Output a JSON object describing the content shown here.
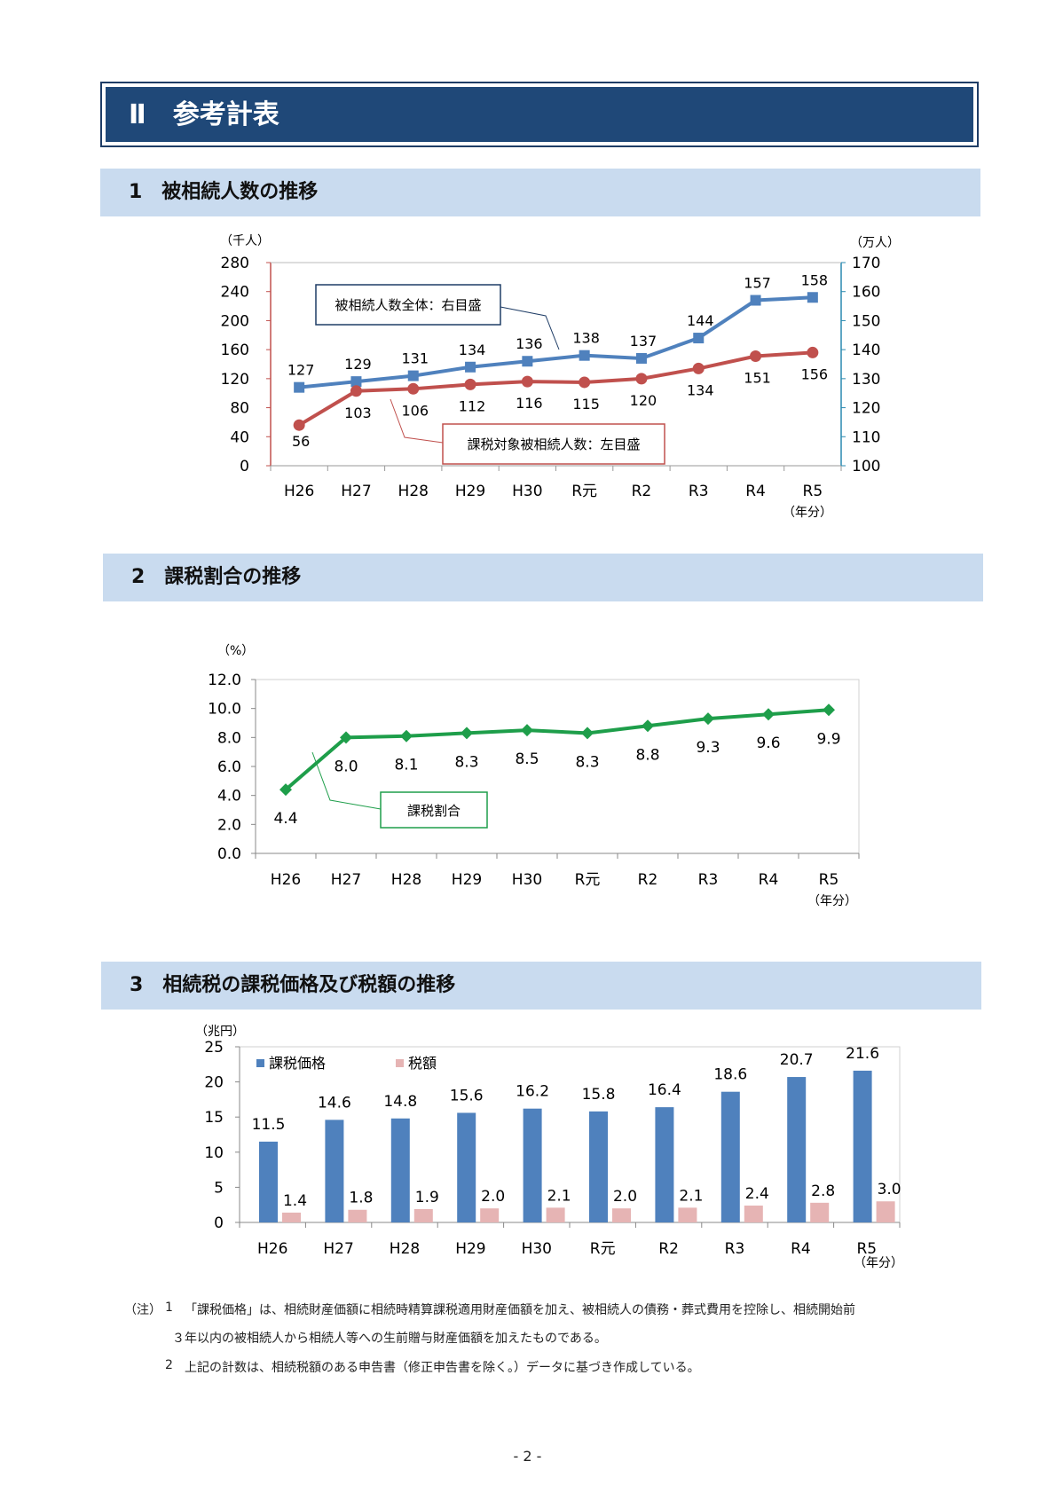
{
  "page_title": "Ⅱ　参考計表",
  "sections": [
    {
      "label": "1　被相続人数の推移"
    },
    {
      "label": "2　課税割合の推移"
    },
    {
      "label": "3　相続税の課税価格及び税額の推移"
    }
  ],
  "chart_data": [
    {
      "type": "line",
      "categories": [
        "H26",
        "H27",
        "H28",
        "H29",
        "H30",
        "R元",
        "R2",
        "R3",
        "R4",
        "R5"
      ],
      "y_left_unit": "（千人）",
      "y_right_unit": "（万人）",
      "x_unit": "（年分）",
      "ylim_left": [
        0,
        280
      ],
      "ylim_right": [
        100,
        170
      ],
      "yticks_left": [
        "0",
        "40",
        "80",
        "120",
        "160",
        "200",
        "240",
        "280"
      ],
      "yticks_right": [
        "100",
        "110",
        "120",
        "130",
        "140",
        "150",
        "160",
        "170"
      ],
      "series": [
        {
          "name": "被相続人数全体：右目盛",
          "axis": "right",
          "color": "#4f81bd",
          "marker": "square",
          "values": [
            127,
            129,
            131,
            134,
            136,
            138,
            137,
            144,
            157,
            158
          ]
        },
        {
          "name": "課税対象被相続人数：左目盛",
          "axis": "left",
          "color": "#c0504d",
          "marker": "circle",
          "values": [
            56,
            103,
            106,
            112,
            116,
            115,
            120,
            134,
            151,
            156
          ]
        }
      ]
    },
    {
      "type": "line",
      "categories": [
        "H26",
        "H27",
        "H28",
        "H29",
        "H30",
        "R元",
        "R2",
        "R3",
        "R4",
        "R5"
      ],
      "y_unit": "（%）",
      "x_unit": "（年分）",
      "ylim": [
        0,
        12
      ],
      "yticks": [
        "0.0",
        "2.0",
        "4.0",
        "6.0",
        "8.0",
        "10.0",
        "12.0"
      ],
      "series": [
        {
          "name": "課税割合",
          "color": "#1e9e4a",
          "marker": "diamond",
          "values": [
            4.4,
            8.0,
            8.1,
            8.3,
            8.5,
            8.3,
            8.8,
            9.3,
            9.6,
            9.9
          ],
          "labels": [
            "4.4",
            "8.0",
            "8.1",
            "8.3",
            "8.5",
            "8.3",
            "8.8",
            "9.3",
            "9.6",
            "9.9"
          ]
        }
      ]
    },
    {
      "type": "bar",
      "categories": [
        "H26",
        "H27",
        "H28",
        "H29",
        "H30",
        "R元",
        "R2",
        "R3",
        "R4",
        "R5"
      ],
      "y_unit": "（兆円）",
      "x_unit": "（年分）",
      "ylim": [
        0,
        25
      ],
      "yticks": [
        "0",
        "5",
        "10",
        "15",
        "20",
        "25"
      ],
      "series": [
        {
          "name": "課税価格",
          "color": "#4f81bd",
          "values": [
            11.5,
            14.6,
            14.8,
            15.6,
            16.2,
            15.8,
            16.4,
            18.6,
            20.7,
            21.6
          ],
          "labels": [
            "11.5",
            "14.6",
            "14.8",
            "15.6",
            "16.2",
            "15.8",
            "16.4",
            "18.6",
            "20.7",
            "21.6"
          ]
        },
        {
          "name": "税額",
          "color": "#e6b4b4",
          "values": [
            1.4,
            1.8,
            1.9,
            2.0,
            2.1,
            2.0,
            2.1,
            2.4,
            2.8,
            3.0
          ],
          "labels": [
            "1.4",
            "1.8",
            "1.9",
            "2.0",
            "2.1",
            "2.0",
            "2.1",
            "2.4",
            "2.8",
            "3.0"
          ]
        }
      ]
    }
  ],
  "notes": {
    "prefix": "（注）",
    "n1_num": "1",
    "n1_line1": "「課税価格」は、相続財産価額に相続時精算課税適用財産価額を加え、被相続人の債務・葬式費用を控除し、相続開始前",
    "n1_line2": "３年以内の被相続人から相続人等への生前贈与財産価額を加えたものである。",
    "n2_num": "2",
    "n2_line": "上記の計数は、相続税額のある申告書（修正申告書を除く。）データに基づき作成している。"
  },
  "page_number": "- 2 -"
}
